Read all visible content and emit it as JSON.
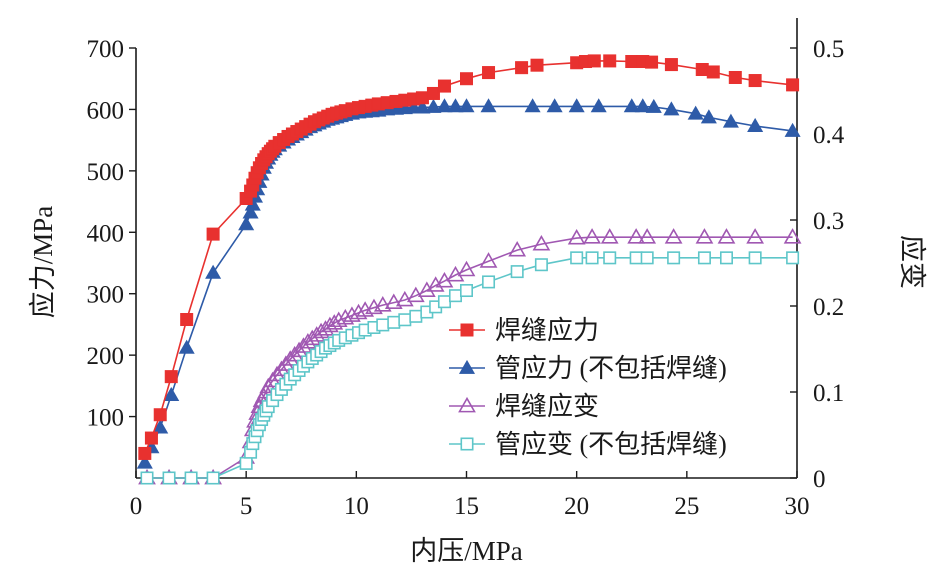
{
  "chart_data": {
    "type": "line",
    "title": "",
    "xlabel": "内压/MPa",
    "ylabel_left": "应力/MPa",
    "ylabel_right": "应变",
    "xlim": [
      0,
      30
    ],
    "ylim_left": [
      0,
      700
    ],
    "ylim_right": [
      0,
      0.5
    ],
    "x_ticks": [
      "0",
      "5",
      "10",
      "15",
      "20",
      "25",
      "30"
    ],
    "y_left_ticks": [
      "100",
      "200",
      "300",
      "400",
      "500",
      "600",
      "700"
    ],
    "y_right_ticks": [
      "0",
      "0.1",
      "0.2",
      "0.3",
      "0.4",
      "0.5"
    ],
    "legend_position": "lower-right",
    "series": [
      {
        "name": "焊缝应力",
        "axis": "left",
        "color": "#e8312f",
        "marker": "filled-square",
        "x": [
          0.4,
          0.7,
          1.1,
          1.6,
          2.3,
          3.5,
          5.0,
          5.2,
          5.3,
          5.4,
          5.5,
          5.6,
          5.7,
          5.8,
          5.9,
          6.0,
          6.1,
          6.2,
          6.3,
          6.5,
          6.7,
          6.9,
          7.1,
          7.3,
          7.5,
          7.7,
          7.9,
          8.1,
          8.3,
          8.5,
          8.7,
          8.9,
          9.1,
          9.3,
          9.5,
          9.8,
          10.1,
          10.4,
          10.7,
          11.0,
          11.4,
          11.8,
          12.2,
          12.6,
          13.0,
          13.5,
          14.0,
          15.0,
          16.0,
          17.5,
          18.2,
          20.0,
          20.4,
          20.8,
          21.5,
          22.5,
          23.0,
          23.4,
          24.3,
          25.7,
          26.2,
          27.2,
          28.1,
          29.8
        ],
        "values": [
          40,
          65,
          103,
          165,
          258,
          397,
          455,
          467,
          477,
          488,
          497,
          505,
          512,
          518,
          523,
          528,
          532,
          536,
          540,
          546,
          551,
          556,
          560,
          564,
          568,
          572,
          576,
          580,
          583,
          586,
          589,
          592,
          594,
          596,
          598,
          601,
          603,
          605,
          607,
          609,
          611,
          613,
          615,
          617,
          619,
          626,
          638,
          650,
          660,
          668,
          672,
          676,
          678,
          679,
          679,
          678,
          678,
          677,
          673,
          665,
          661,
          652,
          647,
          640
        ]
      },
      {
        "name": "管应力 (不包括焊缝)",
        "axis": "left",
        "color": "#2e5ba8",
        "marker": "filled-triangle",
        "x": [
          0.4,
          0.7,
          1.1,
          1.6,
          2.3,
          3.5,
          5.0,
          5.2,
          5.3,
          5.4,
          5.5,
          5.6,
          5.7,
          5.8,
          5.9,
          6.0,
          6.1,
          6.2,
          6.3,
          6.5,
          6.7,
          6.9,
          7.1,
          7.3,
          7.5,
          7.7,
          7.9,
          8.1,
          8.3,
          8.5,
          8.7,
          8.9,
          9.1,
          9.3,
          9.5,
          9.8,
          10.1,
          10.4,
          10.7,
          11.0,
          11.4,
          11.8,
          12.2,
          12.6,
          13.0,
          13.5,
          14.0,
          14.5,
          15.0,
          16.0,
          18.0,
          19.0,
          20.0,
          21.0,
          22.5,
          23.0,
          23.5,
          24.3,
          25.4,
          26.0,
          27.0,
          28.1,
          29.8
        ],
        "values": [
          25,
          50,
          82,
          135,
          212,
          334,
          413,
          432,
          445,
          458,
          470,
          482,
          494,
          505,
          513,
          520,
          526,
          531,
          535,
          541,
          546,
          551,
          555,
          559,
          563,
          567,
          571,
          574,
          577,
          580,
          583,
          585,
          587,
          589,
          591,
          593,
          595,
          596,
          597,
          598,
          600,
          601,
          602,
          603,
          603,
          604,
          605,
          605,
          605,
          605,
          605,
          605,
          605,
          605,
          605,
          605,
          604,
          600,
          593,
          587,
          580,
          573,
          565
        ]
      },
      {
        "name": "焊缝应变",
        "axis": "right",
        "color": "#a058b2",
        "marker": "hollow-triangle",
        "x": [
          0.5,
          1.5,
          2.5,
          3.5,
          5.0,
          5.2,
          5.3,
          5.4,
          5.5,
          5.6,
          5.7,
          5.8,
          5.9,
          6.0,
          6.2,
          6.4,
          6.6,
          6.8,
          7.0,
          7.2,
          7.4,
          7.6,
          7.8,
          8.0,
          8.2,
          8.4,
          8.6,
          8.8,
          9.0,
          9.2,
          9.5,
          9.8,
          10.1,
          10.4,
          10.8,
          11.2,
          11.7,
          12.2,
          12.7,
          13.2,
          13.6,
          14.0,
          14.5,
          15.0,
          16.0,
          17.3,
          18.4,
          20.0,
          20.7,
          21.5,
          22.7,
          23.2,
          24.4,
          25.8,
          26.8,
          28.1,
          29.8
        ],
        "values": [
          0,
          0,
          0,
          0,
          0.024,
          0.042,
          0.056,
          0.066,
          0.075,
          0.083,
          0.09,
          0.095,
          0.1,
          0.106,
          0.113,
          0.12,
          0.126,
          0.132,
          0.138,
          0.143,
          0.148,
          0.153,
          0.158,
          0.162,
          0.166,
          0.17,
          0.173,
          0.177,
          0.18,
          0.183,
          0.186,
          0.189,
          0.192,
          0.195,
          0.198,
          0.201,
          0.204,
          0.207,
          0.212,
          0.218,
          0.224,
          0.229,
          0.236,
          0.242,
          0.252,
          0.265,
          0.272,
          0.279,
          0.28,
          0.28,
          0.28,
          0.28,
          0.28,
          0.28,
          0.28,
          0.28,
          0.28
        ]
      },
      {
        "name": "管应变 (不包括焊缝)",
        "axis": "right",
        "color": "#5ec6c9",
        "marker": "hollow-square",
        "x": [
          0.5,
          1.5,
          2.5,
          3.5,
          5.0,
          5.2,
          5.3,
          5.4,
          5.5,
          5.6,
          5.7,
          5.8,
          5.9,
          6.0,
          6.2,
          6.4,
          6.6,
          6.8,
          7.0,
          7.2,
          7.4,
          7.6,
          7.8,
          8.0,
          8.2,
          8.4,
          8.6,
          8.8,
          9.0,
          9.2,
          9.5,
          9.8,
          10.1,
          10.4,
          10.8,
          11.2,
          11.7,
          12.2,
          12.7,
          13.2,
          13.6,
          14.0,
          14.5,
          15.0,
          16.0,
          17.3,
          18.4,
          20.0,
          20.7,
          21.5,
          22.7,
          23.2,
          24.4,
          25.8,
          26.8,
          28.1,
          29.8
        ],
        "values": [
          0,
          0,
          0,
          0,
          0.017,
          0.03,
          0.04,
          0.048,
          0.055,
          0.062,
          0.068,
          0.073,
          0.078,
          0.083,
          0.09,
          0.097,
          0.103,
          0.109,
          0.115,
          0.12,
          0.125,
          0.13,
          0.135,
          0.139,
          0.143,
          0.147,
          0.151,
          0.154,
          0.157,
          0.16,
          0.163,
          0.166,
          0.169,
          0.172,
          0.175,
          0.178,
          0.181,
          0.184,
          0.188,
          0.193,
          0.199,
          0.205,
          0.212,
          0.218,
          0.228,
          0.24,
          0.248,
          0.256,
          0.256,
          0.256,
          0.256,
          0.256,
          0.256,
          0.256,
          0.256,
          0.256,
          0.256
        ]
      }
    ]
  }
}
